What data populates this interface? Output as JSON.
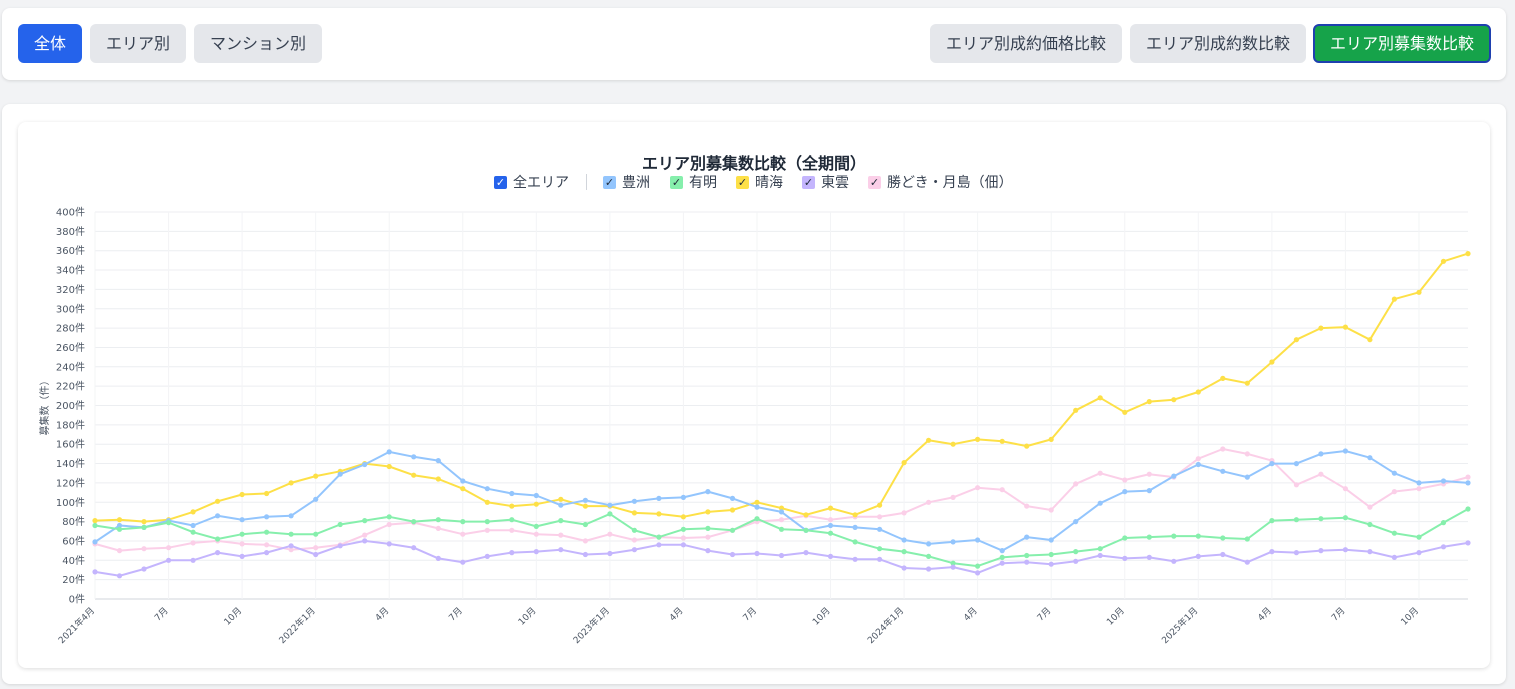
{
  "toolbar": {
    "left_buttons": [
      {
        "label": "全体",
        "active": true
      },
      {
        "label": "エリア別",
        "active": false
      },
      {
        "label": "マンション別",
        "active": false
      }
    ],
    "right_buttons": [
      {
        "label": "エリア別成約価格比較",
        "active": false
      },
      {
        "label": "エリア別成約数比較",
        "active": false
      },
      {
        "label": "エリア別募集数比較",
        "active": true
      }
    ]
  },
  "legend": [
    {
      "label": "全エリア",
      "checked": true,
      "color": "#2563eb"
    },
    {
      "label": "豊洲",
      "checked": true,
      "color": "#93c5fd"
    },
    {
      "label": "有明",
      "checked": true,
      "color": "#86efac"
    },
    {
      "label": "晴海",
      "checked": true,
      "color": "#fde047"
    },
    {
      "label": "東雲",
      "checked": true,
      "color": "#c4b5fd"
    },
    {
      "label": "勝どき・月島（佃）",
      "checked": true,
      "color": "#fbcfe8"
    }
  ],
  "chart_data": {
    "type": "line",
    "title": "エリア別募集数比較（全期間）",
    "ylabel": "募集数（件）",
    "xlabel": "",
    "ylim": [
      0,
      400
    ],
    "y_ticks": [
      "0件",
      "20件",
      "40件",
      "60件",
      "80件",
      "100件",
      "120件",
      "140件",
      "160件",
      "180件",
      "200件",
      "220件",
      "240件",
      "260件",
      "280件",
      "300件",
      "320件",
      "340件",
      "360件",
      "380件",
      "400件"
    ],
    "x_tick_labels": [
      "2021年4月",
      "7月",
      "10月",
      "2022年1月",
      "4月",
      "7月",
      "10月",
      "2023年1月",
      "4月",
      "7月",
      "10月",
      "2024年1月",
      "4月",
      "7月",
      "10月",
      "2025年1月",
      "4月",
      "7月",
      "10月"
    ],
    "x": [
      "2021-04",
      "2021-05",
      "2021-06",
      "2021-07",
      "2021-08",
      "2021-09",
      "2021-10",
      "2021-11",
      "2021-12",
      "2022-01",
      "2022-02",
      "2022-03",
      "2022-04",
      "2022-05",
      "2022-06",
      "2022-07",
      "2022-08",
      "2022-09",
      "2022-10",
      "2022-11",
      "2022-12",
      "2023-01",
      "2023-02",
      "2023-03",
      "2023-04",
      "2023-05",
      "2023-06",
      "2023-07",
      "2023-08",
      "2023-09",
      "2023-10",
      "2023-11",
      "2023-12",
      "2024-01",
      "2024-02",
      "2024-03",
      "2024-04",
      "2024-05",
      "2024-06",
      "2024-07",
      "2024-08",
      "2024-09",
      "2024-10",
      "2024-11",
      "2024-12",
      "2025-01",
      "2025-02",
      "2025-03",
      "2025-04",
      "2025-05",
      "2025-06",
      "2025-07",
      "2025-08",
      "2025-09",
      "2025-10",
      "2025-11",
      "2025-12"
    ],
    "grid": true,
    "series": [
      {
        "name": "豊洲",
        "color": "#93c5fd",
        "values": [
          59,
          76,
          74,
          81,
          76,
          86,
          82,
          85,
          86,
          103,
          129,
          139,
          152,
          147,
          143,
          122,
          114,
          109,
          107,
          97,
          102,
          97,
          101,
          104,
          105,
          111,
          104,
          95,
          90,
          71,
          76,
          74,
          72,
          61,
          57,
          59,
          61,
          50,
          64,
          61,
          80,
          99,
          111,
          112,
          127,
          139,
          132,
          126,
          140,
          140,
          150,
          153,
          146,
          130,
          120,
          122,
          120
        ]
      },
      {
        "name": "有明",
        "color": "#86efac",
        "values": [
          76,
          72,
          74,
          79,
          69,
          62,
          67,
          69,
          67,
          67,
          77,
          81,
          85,
          80,
          82,
          80,
          80,
          82,
          75,
          81,
          77,
          88,
          71,
          64,
          72,
          73,
          71,
          83,
          72,
          71,
          68,
          59,
          52,
          49,
          44,
          37,
          34,
          43,
          45,
          46,
          49,
          52,
          63,
          64,
          65,
          65,
          63,
          62,
          81,
          82,
          83,
          84,
          77,
          68,
          64,
          79,
          93
        ]
      },
      {
        "name": "晴海",
        "color": "#fde047",
        "values": [
          81,
          82,
          80,
          82,
          90,
          101,
          108,
          109,
          120,
          127,
          132,
          140,
          137,
          128,
          124,
          114,
          100,
          96,
          98,
          103,
          96,
          96,
          89,
          88,
          85,
          90,
          92,
          100,
          94,
          87,
          94,
          87,
          97,
          141,
          164,
          160,
          165,
          163,
          158,
          165,
          195,
          208,
          193,
          204,
          206,
          214,
          228,
          223,
          245,
          268,
          280,
          281,
          268,
          310,
          317,
          349,
          357
        ]
      },
      {
        "name": "東雲",
        "color": "#c4b5fd",
        "values": [
          28,
          24,
          31,
          40,
          40,
          48,
          44,
          48,
          55,
          46,
          55,
          60,
          57,
          53,
          42,
          38,
          44,
          48,
          49,
          51,
          46,
          47,
          51,
          56,
          56,
          50,
          46,
          47,
          45,
          48,
          44,
          41,
          41,
          32,
          31,
          33,
          27,
          37,
          38,
          36,
          39,
          45,
          42,
          43,
          39,
          44,
          46,
          38,
          49,
          48,
          50,
          51,
          49,
          43,
          48,
          54,
          58
        ]
      },
      {
        "name": "勝どき・月島（佃）",
        "color": "#fbcfe8",
        "values": [
          57,
          50,
          52,
          53,
          58,
          60,
          57,
          56,
          51,
          53,
          56,
          66,
          77,
          79,
          73,
          67,
          71,
          71,
          67,
          66,
          60,
          67,
          61,
          64,
          63,
          64,
          71,
          80,
          82,
          86,
          82,
          85,
          85,
          89,
          100,
          105,
          115,
          113,
          96,
          92,
          119,
          130,
          123,
          129,
          126,
          145,
          155,
          150,
          143,
          118,
          129,
          114,
          95,
          111,
          114,
          119,
          126
        ]
      }
    ]
  }
}
